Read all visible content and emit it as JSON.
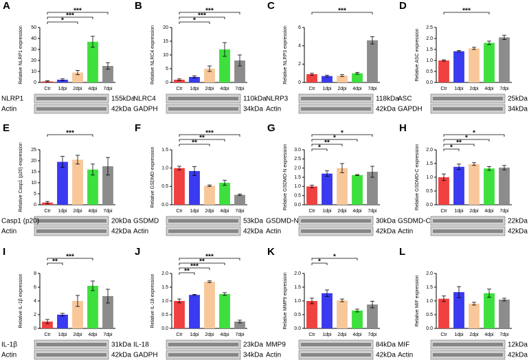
{
  "chart_data": [
    {
      "type": "bar",
      "panel": "A",
      "ylabel": "Relative NLRP1 expression",
      "categories": [
        "Ctr",
        "1dpi",
        "2dpi",
        "4dpi",
        "7dpi"
      ],
      "colors": [
        "#f04040",
        "#3a3af0",
        "#f8c89a",
        "#3ee03e",
        "#8c8c8c"
      ],
      "values": [
        1,
        2.5,
        9,
        37,
        15
      ],
      "errors": [
        0.5,
        0.8,
        2,
        5,
        3
      ],
      "ylim": [
        0,
        50
      ],
      "yticks": [
        0,
        10,
        20,
        30,
        40,
        50
      ],
      "annotations": [
        {
          "from": "Ctr",
          "to": "7dpi",
          "label": "***"
        },
        {
          "from": "Ctr",
          "to": "4dpi",
          "label": "***"
        },
        {
          "from": "Ctr",
          "to": "2dpi",
          "label": "*"
        }
      ],
      "blots": [
        {
          "label": "NLRP1",
          "size": "155kDa"
        },
        {
          "label": "Actin",
          "size": "42kDa"
        }
      ]
    },
    {
      "type": "bar",
      "panel": "B",
      "ylabel": "Relative NLRC4 expression",
      "categories": [
        "Ctr",
        "1dpi",
        "2dpi",
        "4dpi",
        "7dpi"
      ],
      "colors": [
        "#f04040",
        "#3a3af0",
        "#f8c89a",
        "#3ee03e",
        "#8c8c8c"
      ],
      "values": [
        1,
        2,
        5,
        12,
        8
      ],
      "errors": [
        0.3,
        0.4,
        1,
        2.5,
        2
      ],
      "ylim": [
        0,
        20
      ],
      "yticks": [
        0,
        5,
        10,
        15,
        20
      ],
      "annotations": [
        {
          "from": "Ctr",
          "to": "7dpi",
          "label": "***"
        },
        {
          "from": "Ctr",
          "to": "4dpi",
          "label": "***"
        },
        {
          "from": "Ctr",
          "to": "2dpi",
          "label": "*"
        }
      ],
      "blots": [
        {
          "label": "NLRC4",
          "size": "110kDa"
        },
        {
          "label": "GADPH",
          "size": "34kDa"
        }
      ]
    },
    {
      "type": "bar",
      "panel": "C",
      "ylabel": "Relative NLRP3 expression",
      "categories": [
        "Ctr",
        "1dpi",
        "2dpi",
        "4dpi",
        "7dpi"
      ],
      "colors": [
        "#f04040",
        "#3a3af0",
        "#f8c89a",
        "#3ee03e",
        "#8c8c8c"
      ],
      "values": [
        0.9,
        0.7,
        0.75,
        1.0,
        4.6
      ],
      "errors": [
        0.1,
        0.1,
        0.1,
        0.1,
        0.4
      ],
      "ylim": [
        0,
        6
      ],
      "yticks": [
        0,
        2,
        4,
        6
      ],
      "annotations": [
        {
          "from": "Ctr",
          "to": "7dpi",
          "label": "***"
        }
      ],
      "blots": [
        {
          "label": "NLRP3",
          "size": "118kDa"
        },
        {
          "label": "Actin",
          "size": "42kDa"
        }
      ]
    },
    {
      "type": "bar",
      "panel": "D",
      "ylabel": "Relative ASC expression",
      "categories": [
        "Ctr",
        "1dpi",
        "2dpi",
        "4dpi",
        "7dpi"
      ],
      "colors": [
        "#f04040",
        "#3a3af0",
        "#f8c89a",
        "#3ee03e",
        "#8c8c8c"
      ],
      "values": [
        1.0,
        1.42,
        1.55,
        1.8,
        2.05
      ],
      "errors": [
        0.03,
        0.03,
        0.05,
        0.08,
        0.1
      ],
      "ylim": [
        0,
        2.5
      ],
      "yticks": [
        {
          "value": 0,
          "label": "0.0"
        },
        0.5,
        {
          "value": 1,
          "label": "1.0"
        },
        1.5,
        {
          "value": 2,
          "label": "2.0"
        },
        2.5
      ],
      "annotations": [
        {
          "from": "Ctr",
          "to": "4dpi",
          "label": "***"
        }
      ],
      "blots": [
        {
          "label": "ASC",
          "size": "25kDa"
        },
        {
          "label": "GAPDH",
          "size": "34kDa"
        }
      ]
    },
    {
      "type": "bar",
      "panel": "E",
      "ylabel": "Relative Casp1 (p20) expression",
      "categories": [
        "Ctr",
        "1dpi",
        "2dpi",
        "4dpi",
        "7dpi"
      ],
      "colors": [
        "#f04040",
        "#3a3af0",
        "#f8c89a",
        "#3ee03e",
        "#8c8c8c"
      ],
      "values": [
        1,
        19.5,
        20.5,
        16,
        17.5
      ],
      "errors": [
        0.5,
        2.5,
        2,
        2.5,
        4
      ],
      "ylim": [
        0,
        25
      ],
      "yticks": [
        0,
        5,
        10,
        15,
        20,
        25
      ],
      "annotations": [
        {
          "from": "Ctr",
          "to": "4dpi",
          "label": "***"
        }
      ],
      "blots": [
        {
          "label": "Casp1 (p20)",
          "size": "20kDa"
        },
        {
          "label": "Actin",
          "size": "42kDa"
        }
      ]
    },
    {
      "type": "bar",
      "panel": "F",
      "ylabel": "Relative GSDMD expression",
      "categories": [
        "Ctr",
        "1dpi",
        "2dpi",
        "4dpi",
        "7dpi"
      ],
      "colors": [
        "#f04040",
        "#3a3af0",
        "#f8c89a",
        "#3ee03e",
        "#8c8c8c"
      ],
      "values": [
        1.0,
        0.92,
        0.52,
        0.6,
        0.27
      ],
      "errors": [
        0.05,
        0.12,
        0.02,
        0.07,
        0.02
      ],
      "ylim": [
        0,
        1.5
      ],
      "yticks": [
        {
          "value": 0,
          "label": "0.0"
        },
        0.5,
        {
          "value": 1,
          "label": "1.0"
        },
        1.5
      ],
      "annotations": [
        {
          "from": "Ctr",
          "to": "7dpi",
          "label": "***"
        },
        {
          "from": "Ctr",
          "to": "4dpi",
          "label": "**"
        },
        {
          "from": "Ctr",
          "to": "2dpi",
          "label": "**"
        }
      ],
      "blots": [
        {
          "label": "GSDMD",
          "size": "53kDa"
        },
        {
          "label": "Actin",
          "size": "42kDa"
        }
      ]
    },
    {
      "type": "bar",
      "panel": "G",
      "ylabel": "Relative GSDMD-N expression",
      "categories": [
        "Ctr",
        "1dpi",
        "2dpi",
        "4dpi",
        "7dpi"
      ],
      "colors": [
        "#f04040",
        "#3a3af0",
        "#f8c89a",
        "#3ee03e",
        "#8c8c8c"
      ],
      "values": [
        1.0,
        1.7,
        2.0,
        1.62,
        1.8
      ],
      "errors": [
        0.07,
        0.15,
        0.25,
        0.03,
        0.3
      ],
      "ylim": [
        0,
        3
      ],
      "yticks": [
        {
          "value": 0,
          "label": "0.0"
        },
        0.5,
        {
          "value": 1,
          "label": "1.0"
        },
        1.5,
        {
          "value": 2,
          "label": "2.0"
        },
        2.5,
        {
          "value": 3,
          "label": "3.0"
        }
      ],
      "annotations": [
        {
          "from": "Ctr",
          "to": "7dpi",
          "label": "*"
        },
        {
          "from": "Ctr",
          "to": "4dpi",
          "label": "*"
        },
        {
          "from": "Ctr",
          "to": "2dpi",
          "label": "**"
        },
        {
          "from": "Ctr",
          "to": "1dpi",
          "label": "*"
        }
      ],
      "blots": [
        {
          "label": "GSDMD-N",
          "size": "30kDa"
        },
        {
          "label": "Actin",
          "size": "42kDa"
        }
      ]
    },
    {
      "type": "bar",
      "panel": "H",
      "ylabel": "Relative GSDMD-C expression",
      "categories": [
        "Ctr",
        "1dpi",
        "2dpi",
        "4dpi",
        "7dpi"
      ],
      "colors": [
        "#f04040",
        "#3a3af0",
        "#f8c89a",
        "#3ee03e",
        "#8c8c8c"
      ],
      "values": [
        1.0,
        1.38,
        1.48,
        1.32,
        1.35
      ],
      "errors": [
        0.12,
        0.1,
        0.05,
        0.07,
        0.08
      ],
      "ylim": [
        0,
        2
      ],
      "yticks": [
        {
          "value": 0,
          "label": "0.0"
        },
        0.5,
        {
          "value": 1,
          "label": "1.0"
        },
        1.5,
        {
          "value": 2,
          "label": "2.0"
        }
      ],
      "annotations": [
        {
          "from": "Ctr",
          "to": "7dpi",
          "label": "*"
        },
        {
          "from": "Ctr",
          "to": "4dpi",
          "label": "*"
        },
        {
          "from": "Ctr",
          "to": "2dpi",
          "label": "**"
        },
        {
          "from": "Ctr",
          "to": "1dpi",
          "label": "*"
        }
      ],
      "blots": [
        {
          "label": "GSDMD-C",
          "size": "22kDa"
        },
        {
          "label": "Actin",
          "size": "42kDa"
        }
      ]
    },
    {
      "type": "bar",
      "panel": "I",
      "ylabel": "Relative IL-1β expression",
      "categories": [
        "Ctr",
        "1dpi",
        "2dpi",
        "4dpi",
        "7dpi"
      ],
      "colors": [
        "#f04040",
        "#3a3af0",
        "#f8c89a",
        "#3ee03e",
        "#8c8c8c"
      ],
      "values": [
        1,
        2,
        4,
        6.2,
        4.7
      ],
      "errors": [
        0.3,
        0.2,
        0.8,
        0.7,
        1
      ],
      "ylim": [
        0,
        8
      ],
      "yticks": [
        0,
        2,
        4,
        6,
        8
      ],
      "annotations": [
        {
          "from": "Ctr",
          "to": "4dpi",
          "label": "***"
        },
        {
          "from": "Ctr",
          "to": "1dpi",
          "label": "**"
        }
      ],
      "blots": [
        {
          "label": "IL-1β",
          "size": "31kDa"
        },
        {
          "label": "Actin",
          "size": "42kDa"
        }
      ]
    },
    {
      "type": "bar",
      "panel": "J",
      "ylabel": "Relative IL-18 expression",
      "categories": [
        "Ctr",
        "1dpi",
        "2dpi",
        "4dpi",
        "7dpi"
      ],
      "colors": [
        "#f04040",
        "#3a3af0",
        "#f8c89a",
        "#3ee03e",
        "#8c8c8c"
      ],
      "values": [
        1.0,
        1.22,
        1.7,
        1.25,
        0.25
      ],
      "errors": [
        0.07,
        0.02,
        0.03,
        0.05,
        0.05
      ],
      "ylim": [
        0,
        2
      ],
      "yticks": [
        {
          "value": 0,
          "label": "0.0"
        },
        0.5,
        {
          "value": 1,
          "label": "1.0"
        },
        1.5,
        {
          "value": 2,
          "label": "2.0"
        }
      ],
      "annotations": [
        {
          "from": "Ctr",
          "to": "7dpi",
          "label": "***"
        },
        {
          "from": "Ctr",
          "to": "4dpi",
          "label": "**"
        },
        {
          "from": "Ctr",
          "to": "2dpi",
          "label": "***"
        },
        {
          "from": "Ctr",
          "to": "1dpi",
          "label": "**"
        }
      ],
      "blots": [
        {
          "label": "IL-18",
          "size": "23kDa"
        },
        {
          "label": "GADPH",
          "size": "34kDa"
        }
      ]
    },
    {
      "type": "bar",
      "panel": "K",
      "ylabel": "Relative MMP9 expression",
      "categories": [
        "Ctr",
        "1dpi",
        "2dpi",
        "4dpi",
        "7dpi"
      ],
      "colors": [
        "#f04040",
        "#3a3af0",
        "#f8c89a",
        "#3ee03e",
        "#8c8c8c"
      ],
      "values": [
        1.0,
        1.28,
        1.02,
        0.65,
        0.87
      ],
      "errors": [
        0.1,
        0.12,
        0.05,
        0.05,
        0.12
      ],
      "ylim": [
        0,
        2
      ],
      "yticks": [
        {
          "value": 0,
          "label": "0.0"
        },
        0.5,
        {
          "value": 1,
          "label": "1.0"
        },
        1.5,
        {
          "value": 2,
          "label": "2.0"
        }
      ],
      "annotations": [
        {
          "from": "Ctr",
          "to": "4dpi",
          "label": "*"
        },
        {
          "from": "Ctr",
          "to": "1dpi",
          "label": "*"
        }
      ],
      "blots": [
        {
          "label": "MMP9",
          "size": "84kDa"
        },
        {
          "label": "Actin",
          "size": "42kDa"
        }
      ]
    },
    {
      "type": "bar",
      "panel": "L",
      "ylabel": "Relative MIF expression",
      "categories": [
        "Ctr",
        "1dpi",
        "2dpi",
        "4dpi",
        "7dpi"
      ],
      "colors": [
        "#f04040",
        "#3a3af0",
        "#f8c89a",
        "#3ee03e",
        "#8c8c8c"
      ],
      "values": [
        1.08,
        1.32,
        0.9,
        1.28,
        1.05
      ],
      "errors": [
        0.1,
        0.2,
        0.05,
        0.15,
        0.05
      ],
      "ylim": [
        0,
        2
      ],
      "yticks": [
        {
          "value": 0,
          "label": "0.0"
        },
        0.5,
        {
          "value": 1,
          "label": "1.0"
        },
        1.5,
        {
          "value": 2,
          "label": "2.0"
        }
      ],
      "annotations": [],
      "blots": [
        {
          "label": "MIF",
          "size": "12kDa"
        },
        {
          "label": "Actin",
          "size": "42kDa"
        }
      ]
    }
  ]
}
